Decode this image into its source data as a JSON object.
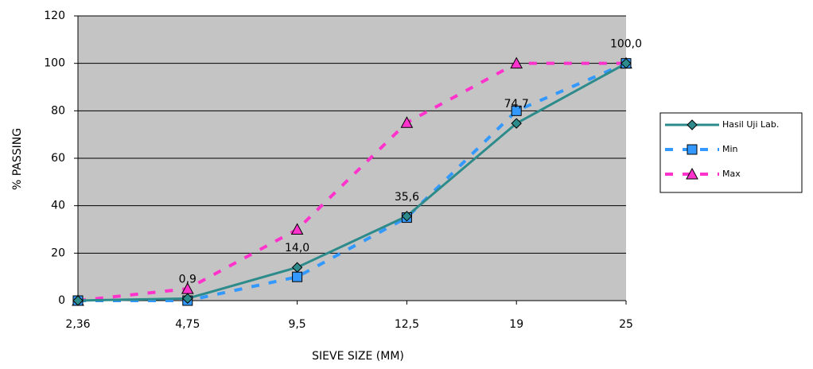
{
  "chart_data": {
    "type": "line",
    "xlabel": "SIEVE SIZE (MM)",
    "ylabel": "% PASSING",
    "categories": [
      "2,36",
      "4,75",
      "9,5",
      "12,5",
      "19",
      "25"
    ],
    "ylim": [
      0,
      120
    ],
    "yticks": [
      0,
      20,
      40,
      60,
      80,
      100,
      120
    ],
    "grid": true,
    "series": [
      {
        "name": "Hasil Uji Lab.",
        "color": "#2e8b8b",
        "marker": "diamond",
        "dashed": false,
        "values": [
          0,
          0.9,
          14.0,
          35.6,
          74.7,
          100.0
        ],
        "value_labels": [
          null,
          "0,9",
          "14,0",
          "35,6",
          "74,7",
          "100,0"
        ]
      },
      {
        "name": "Min",
        "color": "#3399ff",
        "marker": "square",
        "dashed": true,
        "values": [
          0,
          0,
          10,
          35,
          80,
          100
        ]
      },
      {
        "name": "Max",
        "color": "#ff33cc",
        "marker": "triangle",
        "dashed": true,
        "values": [
          0,
          5,
          30,
          75,
          100,
          100
        ]
      }
    ]
  }
}
